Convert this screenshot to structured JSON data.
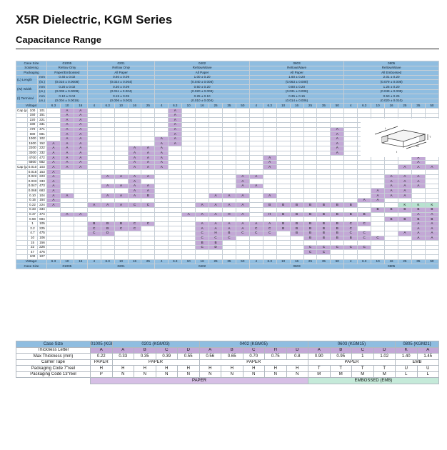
{
  "page": {
    "title": "X5R Dielectric, KGM Series",
    "subtitle": "Capacitance Range"
  },
  "capacitance_table": {
    "headers": {
      "case_size_label": "Case Size",
      "soldering_label": "Soldering",
      "packaging_label": "Packaging",
      "length_label": "(L) Length",
      "width_label": "(W) Width",
      "terminal_label": "(t) Terminal",
      "unit_mm": "mm",
      "unit_in": "(in.)",
      "voltage_label": "Voltage:",
      "cap_pf_label": "Cap (pF)",
      "cap_uf_label": "Cap (μF)"
    },
    "cases": [
      {
        "name": "01005",
        "soldering": "Reflow Only",
        "packaging": "Paper/Embossed",
        "length_mm": "0.40 ± 0.02",
        "length_in": "(0.016 ± 0.0008)",
        "width_mm": "0.20 ± 0.02",
        "width_in": "(0.008 ± 0.0008)",
        "terminal_mm": "0.10 ± 0.04",
        "terminal_in": "(0.004 ± 0.0016)",
        "voltages": [
          "6.3",
          "10",
          "16"
        ]
      },
      {
        "name": "0201",
        "soldering": "Reflow Only",
        "packaging": "All Paper",
        "length_mm": "0.60 ± 0.09",
        "length_in": "(0.024 ± 0.004)",
        "width_mm": "0.30 ± 0.09",
        "width_in": "(0.011 ± 0.004)",
        "terminal_mm": "0.15 ± 0.05",
        "terminal_in": "(0.006 ± 0.002)",
        "voltages": [
          "4",
          "6.3",
          "10",
          "16",
          "25"
        ]
      },
      {
        "name": "0402",
        "soldering": "Reflow/Wave",
        "packaging": "All Paper",
        "length_mm": "1.00 ± 0.20",
        "length_in": "(0.040 ± 0.008)",
        "width_mm": "0.50 ± 0.20",
        "width_in": "(0.020 ± 0.008)",
        "terminal_mm": "0.25 ± 0.10",
        "terminal_in": "(0.010 ± 0.004)",
        "voltages": [
          "4",
          "6.3",
          "10",
          "16",
          "25",
          "35",
          "50"
        ]
      },
      {
        "name": "0603",
        "soldering": "Reflow/Wave",
        "packaging": "All Paper",
        "length_mm": "1.60 ± 0.20",
        "length_in": "(0.063 ± 0.008)",
        "width_mm": "0.80 ± 0.20",
        "width_in": "(0.031 ± 0.008)",
        "terminal_mm": "0.35 ± 0.15",
        "terminal_in": "(0.014 ± 0.006)",
        "voltages": [
          "4",
          "6.3",
          "10",
          "16",
          "25",
          "35",
          "50"
        ]
      },
      {
        "name": "0805",
        "soldering": "Reflow/Wave",
        "packaging": "All Embossed",
        "length_mm": "2.01 ± 0.20",
        "length_in": "(0.079 ± 0.008)",
        "width_mm": "1.25 ± 0.20",
        "width_in": "(0.049 ± 0.008)",
        "terminal_mm": "0.50 ± 0.25",
        "terminal_in": "(0.020 ± 0.010)",
        "voltages": [
          "4",
          "6.3",
          "10",
          "16",
          "25",
          "35",
          "50"
        ]
      }
    ],
    "rows": [
      {
        "unit": "pF",
        "cap": "100",
        "code": "101",
        "cells": "-AA------A---------------------------"
      },
      {
        "unit": "",
        "cap": "150",
        "code": "151",
        "cells": "-AA------A---------------------------"
      },
      {
        "unit": "",
        "cap": "220",
        "code": "221",
        "cells": "-AA------A---------------------------"
      },
      {
        "unit": "",
        "cap": "330",
        "cells": "-AA------A----------------------------",
        "code": "331"
      },
      {
        "unit": "",
        "cap": "470",
        "code": "471",
        "cells": "-AA------A-----------A---------------"
      },
      {
        "unit": "",
        "cap": "680",
        "code": "681",
        "cells": "-AA------A-----------A---------------"
      },
      {
        "unit": "",
        "cap": "1000",
        "code": "102",
        "cells": "-AA-----AA-----------A---------------"
      },
      {
        "unit": "",
        "cap": "1500",
        "code": "152",
        "cells": "AAA-----AA-----------A---------------"
      },
      {
        "unit": "",
        "cap": "2200",
        "code": "222",
        "cells": "AAA---AAA------------A---------------"
      },
      {
        "unit": "",
        "cap": "3300",
        "code": "332",
        "cells": "AAA---AAA------------A---------------"
      },
      {
        "unit": "",
        "cap": "4700",
        "code": "472",
        "cells": "AAA---AAA-------A----------A--------"
      },
      {
        "unit": "",
        "cap": "6800",
        "code": "682",
        "cells": "AAA---AAA-------A----------A--------"
      },
      {
        "unit": "μF",
        "cap": "0.010",
        "code": "103",
        "cells": "AAA---AAA-------A---------AAA-------"
      },
      {
        "unit": "",
        "cap": "0.015",
        "code": "153",
        "cells": "A-----------------------------AAA-------"
      },
      {
        "unit": "",
        "cap": "0.022",
        "code": "223",
        "cells": "A---AAAA------AA---------AAA-------K"
      },
      {
        "unit": "",
        "cap": "0.033",
        "code": "333",
        "cells": "A-----A-------A----------AAA-------K"
      },
      {
        "unit": "",
        "cap": "0.047",
        "code": "473",
        "cells": "A---AAAA------AA---------AAA-------K"
      },
      {
        "unit": "",
        "cap": "0.068",
        "code": "683",
        "cells": "A-----AA----------------AAA-------K"
      },
      {
        "unit": "",
        "cap": "0.10",
        "code": "104",
        "cells": "AA--AAAB----AAA-A-------AAA----KKK"
      },
      {
        "unit": "",
        "cap": "0.15",
        "code": "154",
        "cells": "A----------------------AA-----KK"
      },
      {
        "unit": "",
        "cap": "0.22",
        "code": "224",
        "cells": "A--AAACC---AAAA-BBBBBBB---KKK"
      },
      {
        "unit": "",
        "cap": "0.33",
        "code": "334",
        "cells": "------------------------BBBBBBB------AA"
      },
      {
        "unit": "",
        "cap": "0.47",
        "code": "474",
        "cells": "-AA-------AAAHA-HBBBBBBB---AAA"
      },
      {
        "unit": "",
        "cap": "0.68",
        "code": "684",
        "cells": "-------------------------BBBB---------AA"
      },
      {
        "unit": "",
        "cap": "1",
        "code": "105",
        "cells": "---BBBCC---AAAAAABBBBBCC---AAAA"
      },
      {
        "unit": "",
        "cap": "2.2",
        "code": "225",
        "cells": "---CBCC----AAAACCBBBBBC----AAAA"
      },
      {
        "unit": "",
        "cap": "4.7",
        "code": "475",
        "cells": "---CD------CHBCCC-BBBBCC--AAAAAA"
      },
      {
        "unit": "",
        "cap": "10",
        "code": "106",
        "cells": "-----------CCC-----BBBBCC--AAAAAA"
      },
      {
        "unit": "",
        "cap": "15",
        "code": "156",
        "cells": "-----------BB------------------------"
      },
      {
        "unit": "",
        "cap": "22",
        "code": "226",
        "cells": "-----------CD------CCCCC-----AAAA"
      },
      {
        "unit": "",
        "cap": "47",
        "code": "476",
        "cells": "-------------------CC-----------AAA"
      },
      {
        "unit": "",
        "cap": "100",
        "code": "107",
        "cells": "--------------------------------A"
      }
    ]
  },
  "bottom_table": {
    "case_size_label": "Case Size",
    "thickness_letter_label": "Thickness Letter",
    "max_thickness_label": "Max Thickness (mm)",
    "carrier_tape_label": "Carrier Tape",
    "pkg7_label": "Packaging Code 7\"reel",
    "pkg13_label": "Packaging Code 13\"reel",
    "groups": [
      {
        "name": "01005 (KGM02)",
        "span": 1,
        "carrier": "PAPER"
      },
      {
        "name": "0201 (KGM03)",
        "span": 4,
        "carrier": "PAPER"
      },
      {
        "name": "0402 (KGM05)",
        "span": 5,
        "carrier": "PAPER"
      },
      {
        "name": "0603 (KGM15)",
        "span": 4,
        "carrier": "PAPER"
      },
      {
        "name": "0805 (KGM21)",
        "span": 2,
        "carrier": "EMB"
      }
    ],
    "letters": [
      "A",
      "A",
      "B",
      "C",
      "D",
      "A",
      "B",
      "C",
      "H",
      "D",
      "A",
      "B",
      "C",
      "D",
      "K",
      "A"
    ],
    "max_thickness": [
      "0.22",
      "0.33",
      "0.35",
      "0.39",
      "0.55",
      "0.56",
      "0.65",
      "0.70",
      "0.75",
      "0.8",
      "0.90",
      "0.95",
      "1",
      "1.02",
      "1.40",
      "1.45"
    ],
    "pkg7": [
      "H",
      "H",
      "H",
      "H",
      "H",
      "H",
      "H",
      "H",
      "H",
      "H",
      "T",
      "T",
      "T",
      "T",
      "U",
      "U"
    ],
    "pkg13": [
      "P",
      "N",
      "N",
      "N",
      "N",
      "N",
      "N",
      "N",
      "N",
      "N",
      "M",
      "M",
      "M",
      "M",
      "L",
      "L"
    ],
    "footer_paper": "PAPER",
    "footer_embossed": "EMBOSSED (EMB)"
  }
}
